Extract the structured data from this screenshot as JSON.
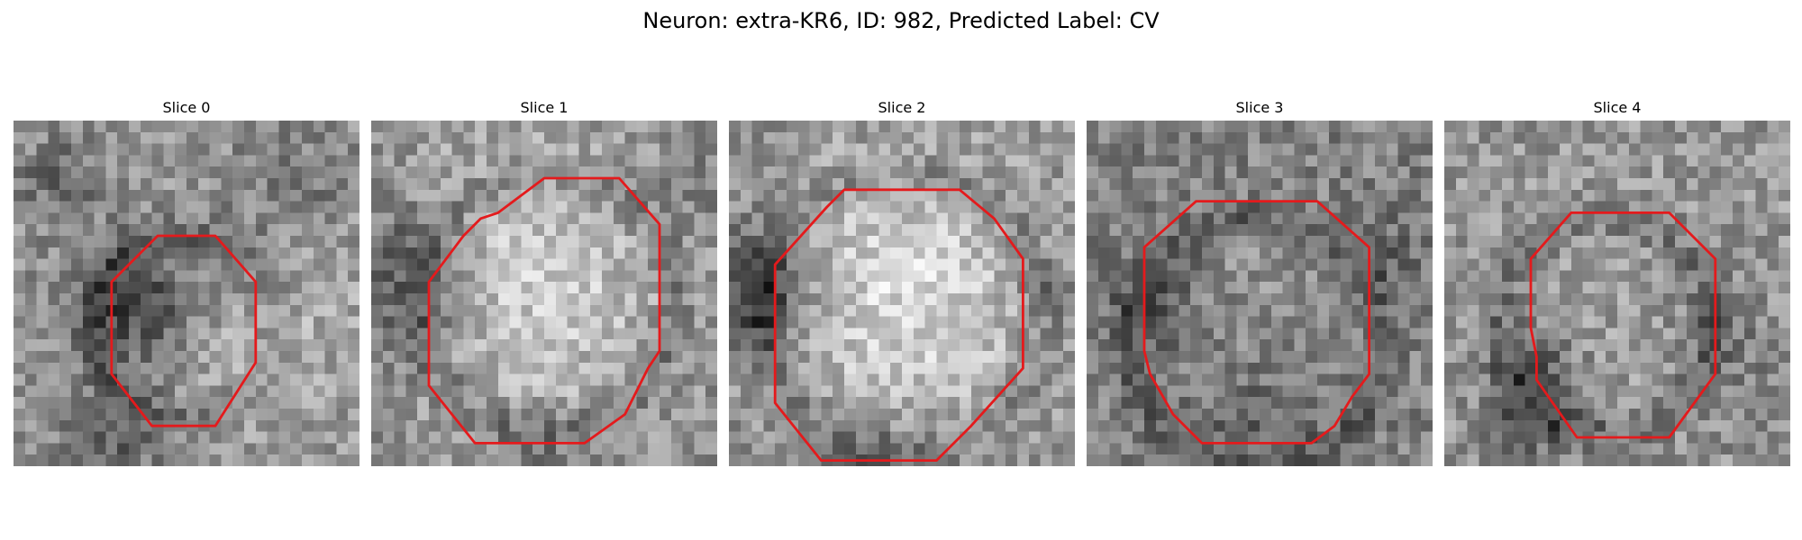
{
  "figure": {
    "title": "Neuron: extra-KR6, ID: 982, Predicted Label: CV",
    "contour_color": "#e41a1c"
  },
  "slices": [
    {
      "label": "Slice 0",
      "seed": 11,
      "base": 150,
      "dark_spots": [
        [
          10,
          16,
          4,
          -75
        ],
        [
          4,
          5,
          2.5,
          -45
        ],
        [
          8,
          28,
          3,
          -55
        ],
        [
          24,
          6,
          4,
          -30
        ]
      ],
      "bright_spots": [
        [
          22,
          21,
          4,
          35
        ],
        [
          27,
          13,
          3,
          25
        ]
      ],
      "contour": [
        [
          12.5,
          10
        ],
        [
          17.5,
          10
        ],
        [
          21,
          14
        ],
        [
          21,
          21
        ],
        [
          17.5,
          26.5
        ],
        [
          12,
          26.5
        ],
        [
          8.5,
          22
        ],
        [
          8.5,
          14
        ]
      ]
    },
    {
      "label": "Slice 1",
      "seed": 23,
      "base": 140,
      "dark_spots": [
        [
          3,
          16,
          4,
          -55
        ],
        [
          3,
          10,
          3,
          -35
        ],
        [
          14,
          31,
          3,
          -40
        ],
        [
          27,
          6,
          3,
          -20
        ]
      ],
      "bright_spots": [
        [
          14,
          14,
          9,
          65
        ]
      ],
      "contour": [
        [
          15,
          5
        ],
        [
          21.5,
          5
        ],
        [
          25,
          9
        ],
        [
          25,
          20
        ],
        [
          24,
          21.5
        ],
        [
          22,
          25.5
        ],
        [
          18.5,
          28
        ],
        [
          9,
          28
        ],
        [
          5,
          23
        ],
        [
          5,
          14
        ],
        [
          8,
          10
        ],
        [
          9.5,
          8.5
        ],
        [
          11,
          8
        ]
      ]
    },
    {
      "label": "Slice 2",
      "seed": 37,
      "base": 140,
      "dark_spots": [
        [
          2.5,
          13,
          3.5,
          -70
        ],
        [
          2.5,
          17,
          3,
          -50
        ],
        [
          13,
          31,
          3.5,
          -45
        ],
        [
          27,
          14,
          2,
          -25
        ]
      ],
      "bright_spots": [
        [
          15,
          15,
          9,
          75
        ]
      ],
      "contour": [
        [
          10,
          6
        ],
        [
          20,
          6
        ],
        [
          23,
          8.5
        ],
        [
          25.5,
          12
        ],
        [
          25.5,
          21.5
        ],
        [
          21,
          26.5
        ],
        [
          18,
          29.5
        ],
        [
          8,
          29.5
        ],
        [
          4,
          24.5
        ],
        [
          4,
          12.5
        ],
        [
          8.5,
          7.5
        ]
      ]
    },
    {
      "label": "Slice 3",
      "seed": 51,
      "base": 128,
      "dark_spots": [
        [
          6,
          16,
          3,
          -35
        ],
        [
          26,
          12,
          2.5,
          -30
        ],
        [
          14,
          26,
          4,
          -25
        ]
      ],
      "bright_spots": [
        [
          15,
          15,
          6,
          15
        ]
      ],
      "contour": [
        [
          9.5,
          7
        ],
        [
          20,
          7
        ],
        [
          24.5,
          11
        ],
        [
          24.5,
          22
        ],
        [
          23,
          24
        ],
        [
          21.5,
          26.5
        ],
        [
          19.5,
          28
        ],
        [
          10,
          28
        ],
        [
          7.5,
          25.5
        ],
        [
          5.5,
          22
        ],
        [
          5,
          20
        ],
        [
          5,
          11
        ]
      ]
    },
    {
      "label": "Slice 4",
      "seed": 67,
      "base": 150,
      "dark_spots": [
        [
          8,
          25,
          3,
          -70
        ],
        [
          7.5,
          20,
          2,
          -40
        ],
        [
          24,
          18,
          3,
          -30
        ],
        [
          27,
          25,
          3,
          -20
        ]
      ],
      "bright_spots": [
        [
          15,
          15,
          6,
          10
        ]
      ],
      "contour": [
        [
          11,
          8
        ],
        [
          19.5,
          8
        ],
        [
          23.5,
          12
        ],
        [
          23.5,
          22
        ],
        [
          19.5,
          27.5
        ],
        [
          11.5,
          27.5
        ],
        [
          8,
          22.5
        ],
        [
          8,
          20.5
        ],
        [
          7.5,
          18
        ],
        [
          7.5,
          12
        ]
      ]
    }
  ]
}
